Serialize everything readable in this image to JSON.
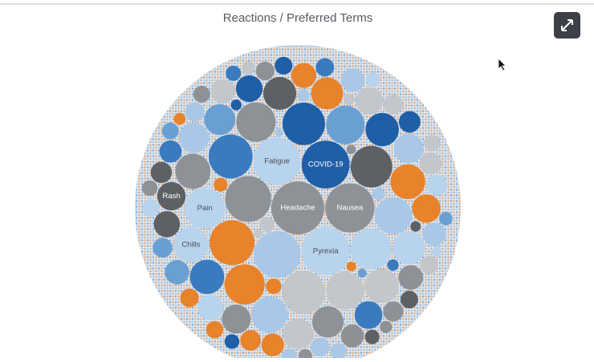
{
  "chart_data": {
    "type": "bubble",
    "title": "Reactions / Preferred Terms",
    "categories": [
      "Headache",
      "Nausea",
      "COVID-19",
      "Pyrexia",
      "Fatigue",
      null,
      null,
      null,
      null,
      null,
      null,
      null,
      null,
      "Pain",
      null,
      null,
      null,
      null,
      null,
      null,
      null,
      "Chills",
      null,
      null,
      null,
      null,
      null,
      null,
      null,
      null,
      null,
      null,
      null,
      null,
      null,
      "Rash",
      null,
      null,
      null,
      null,
      null,
      null,
      null,
      null,
      null,
      null,
      null,
      null,
      null,
      null,
      null,
      null,
      null,
      null,
      null,
      null,
      null,
      null,
      null,
      null,
      null,
      null,
      null,
      null,
      null,
      null,
      null,
      null,
      null,
      null,
      null,
      null,
      null,
      null,
      null,
      null,
      null,
      null,
      null,
      null,
      null,
      null,
      null,
      null,
      null,
      null,
      null,
      null,
      null,
      null,
      null,
      null,
      null,
      null,
      null,
      null,
      null,
      null,
      null
    ],
    "values": [
      900,
      780,
      740,
      740,
      720,
      700,
      680,
      650,
      620,
      600,
      580,
      560,
      540,
      530,
      520,
      500,
      480,
      460,
      440,
      420,
      400,
      400,
      390,
      380,
      370,
      360,
      350,
      340,
      330,
      320,
      310,
      300,
      290,
      280,
      270,
      260,
      260,
      250,
      240,
      230,
      220,
      210,
      200,
      195,
      190,
      185,
      180,
      175,
      170,
      165,
      160,
      155,
      150,
      145,
      140,
      135,
      130,
      125,
      120,
      118,
      115,
      112,
      110,
      108,
      105,
      102,
      100,
      98,
      95,
      92,
      90,
      88,
      85,
      82,
      80,
      78,
      75,
      72,
      70,
      68,
      65,
      62,
      60,
      58,
      55,
      52,
      50,
      48,
      45,
      42,
      40,
      38,
      35,
      32,
      30,
      28,
      25,
      22,
      20
    ],
    "colors": [
      "#8e9296",
      "#8e9296",
      "#1f5fa8",
      "#b7d3ee",
      "#b7d3ee",
      "#a9c8e8",
      "#8e9296",
      "#e8822b",
      "#3a7bbf",
      "#c3c6ca",
      "#1f5fa8",
      "#5d6166",
      "#b7d3ee",
      "#b7d3ee",
      "#e8822b",
      "#8e9296",
      "#6a9fd4",
      "#c3c6ca",
      "#a9c8e8",
      "#a9c8e8",
      "#8e9296",
      "#b7d3ee",
      "#e8822b",
      "#3a7bbf",
      "#c3c6ca",
      "#1f5fa8",
      "#5d6166",
      "#b7d3ee",
      "#e8822b",
      "#8e9296",
      "#6a9fd4",
      "#c3c6ca",
      "#a9c8e8",
      "#a9c8e8",
      "#8e9296",
      "#5d6166",
      "#e8822b",
      "#3a7bbf",
      "#c3c6ca",
      "#1f5fa8",
      "#5d6166",
      "#b7d3ee",
      "#e8822b",
      "#8e9296",
      "#6a9fd4",
      "#c3c6ca",
      "#a9c8e8",
      "#a9c8e8",
      "#8e9296",
      "#e8822b",
      "#3a7bbf",
      "#c3c6ca",
      "#1f5fa8",
      "#5d6166",
      "#b7d3ee",
      "#e8822b",
      "#8e9296",
      "#6a9fd4",
      "#c3c6ca",
      "#a9c8e8",
      "#a9c8e8",
      "#8e9296",
      "#e8822b",
      "#3a7bbf",
      "#c3c6ca",
      "#1f5fa8",
      "#5d6166",
      "#b7d3ee",
      "#e8822b",
      "#8e9296",
      "#6a9fd4",
      "#c3c6ca",
      "#a9c8e8",
      "#a9c8e8",
      "#8e9296",
      "#e8822b",
      "#3a7bbf",
      "#c3c6ca",
      "#1f5fa8",
      "#5d6166",
      "#b7d3ee",
      "#e8822b",
      "#8e9296",
      "#6a9fd4",
      "#c3c6ca",
      "#a9c8e8",
      "#a9c8e8",
      "#8e9296",
      "#e8822b",
      "#3a7bbf",
      "#c3c6ca",
      "#1f5fa8",
      "#5d6166",
      "#b7d3ee",
      "#e8822b",
      "#8e9296",
      "#6a9fd4",
      "#c3c6ca",
      "#a9c8e8"
    ]
  }
}
